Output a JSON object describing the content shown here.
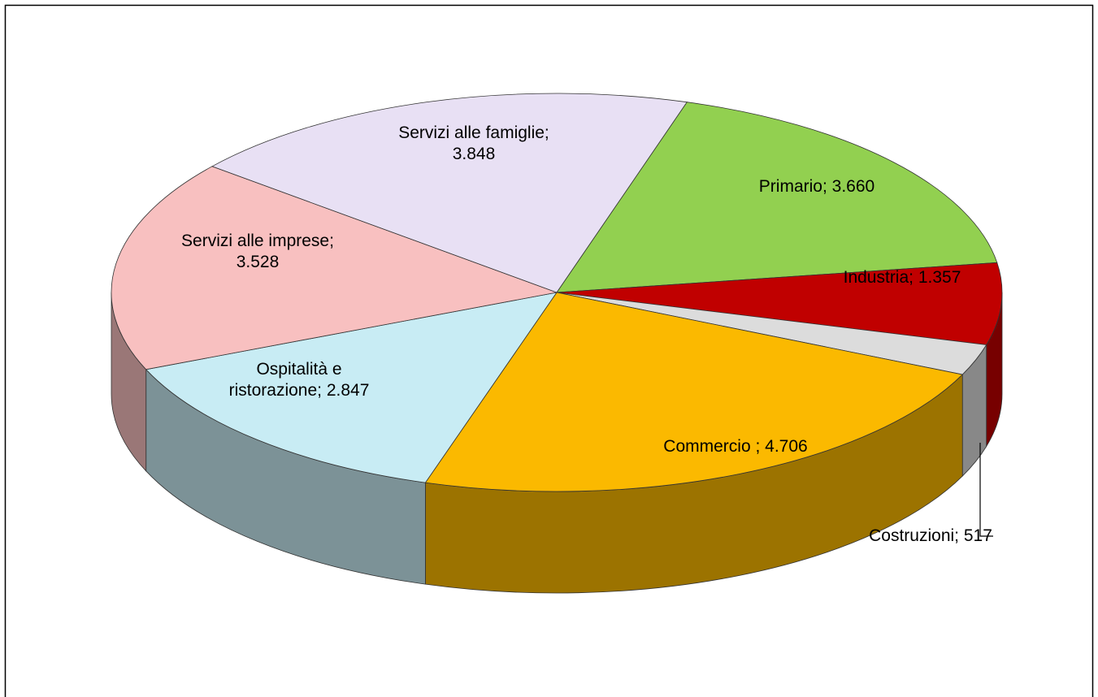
{
  "chart_data": {
    "type": "pie",
    "labels": [
      "Primario; 3.660",
      "Industria; 1.357",
      "Costruzioni; 517",
      "Commercio ; 4.706",
      "Ospitalità e\nristorazione; 2.847",
      "Servizi alle imprese;\n3.528",
      "Servizi alle famiglie;\n3.848"
    ],
    "values": [
      3660,
      1357,
      517,
      4706,
      2847,
      3528,
      3848
    ],
    "colors": [
      "#92d050",
      "#c00000",
      "#dcdcdc",
      "#fbb900",
      "#c8ecf4",
      "#f8c0c0",
      "#e8e0f4"
    ]
  }
}
